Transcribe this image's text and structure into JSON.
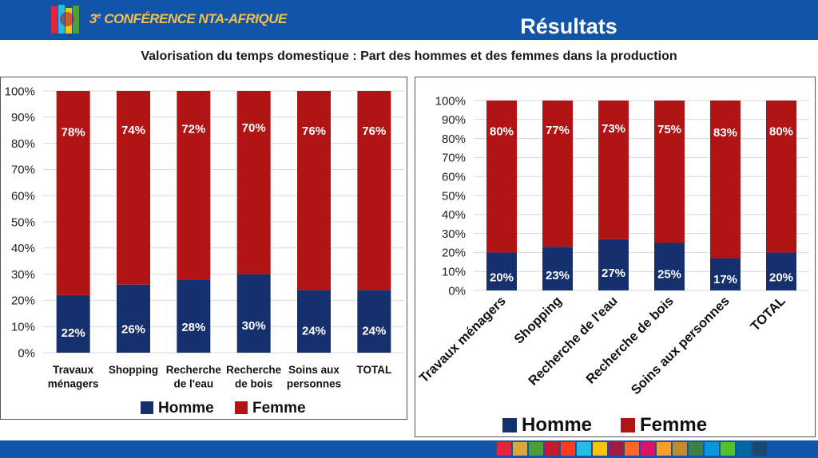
{
  "header": {
    "logo_prefix": "3",
    "logo_sup": "e",
    "logo_text": "CONFÉRENCE NTA-AFRIQUE",
    "title": "Résultats",
    "background": "#1254a8",
    "logo_color": "#f2c14e"
  },
  "subtitle": "Valorisation du temps domestique : Part des hommes et des femmes dans la production",
  "sdg_colors": [
    "#e5243b",
    "#dda63a",
    "#4c9f38",
    "#c5192d",
    "#ff3a21",
    "#26bde2",
    "#fcc30b",
    "#a21942",
    "#fd6925",
    "#dd1367",
    "#fd9d24",
    "#bf8b2e",
    "#3f7e44",
    "#0a97d9",
    "#56c02b",
    "#00689d",
    "#19486a"
  ],
  "chart_data": [
    {
      "type": "bar",
      "stacked": true,
      "categories": [
        [
          "Travaux",
          "ménagers"
        ],
        [
          "Shopping"
        ],
        [
          "Recherche",
          "de l'eau"
        ],
        [
          "Recherche",
          "de bois"
        ],
        [
          "Soins aux",
          "personnes"
        ],
        [
          "TOTAL"
        ]
      ],
      "series": [
        {
          "name": "Homme",
          "values": [
            22,
            26,
            28,
            30,
            24,
            24
          ],
          "labels": [
            "22%",
            "26%",
            "28%",
            "30%",
            "24%",
            "24%"
          ],
          "color": "#16306e"
        },
        {
          "name": "Femme",
          "values": [
            78,
            74,
            72,
            70,
            76,
            76
          ],
          "labels": [
            "78%",
            "74%",
            "72%",
            "70%",
            "76%",
            "76%"
          ],
          "color": "#b01414"
        }
      ],
      "ylim": [
        0,
        100
      ],
      "yticks": [
        "0%",
        "10%",
        "20%",
        "30%",
        "40%",
        "50%",
        "60%",
        "70%",
        "80%",
        "90%",
        "100%"
      ],
      "grid": true,
      "legend": "bottom",
      "xlabel_rotation": 0
    },
    {
      "type": "bar",
      "stacked": true,
      "categories": [
        [
          "Travaux ménagers"
        ],
        [
          "Shopping"
        ],
        [
          "Recherche de l'eau"
        ],
        [
          "Recherche de bois"
        ],
        [
          "Soins aux personnes"
        ],
        [
          "TOTAL"
        ]
      ],
      "series": [
        {
          "name": "Homme",
          "values": [
            20,
            23,
            27,
            25,
            17,
            20
          ],
          "labels": [
            "20%",
            "23%",
            "27%",
            "25%",
            "17%",
            "20%"
          ],
          "color": "#16306e"
        },
        {
          "name": "Femme",
          "values": [
            80,
            77,
            73,
            75,
            83,
            80
          ],
          "labels": [
            "80%",
            "77%",
            "73%",
            "75%",
            "83%",
            "80%"
          ],
          "color": "#b01414"
        }
      ],
      "ylim": [
        0,
        100
      ],
      "yticks": [
        "0%",
        "10%",
        "20%",
        "30%",
        "40%",
        "50%",
        "60%",
        "70%",
        "80%",
        "90%",
        "100%"
      ],
      "grid": true,
      "legend": "bottom",
      "xlabel_rotation": -45
    }
  ]
}
